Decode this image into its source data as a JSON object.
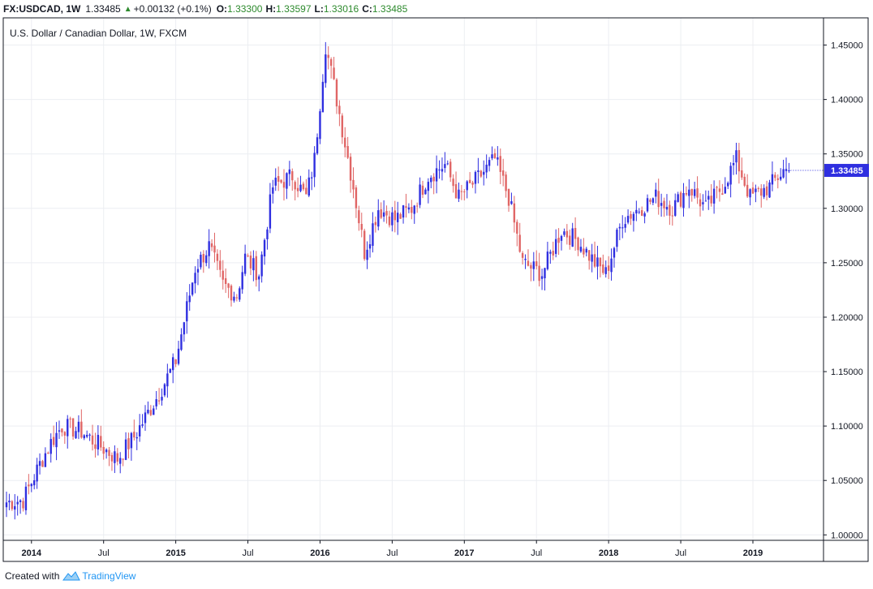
{
  "header": {
    "symbol": "FX:USDCAD, 1W",
    "last": "1.33485",
    "change": "+0.00132 (+0.1%)",
    "o_label": "O:",
    "o_value": "1.33300",
    "h_label": "H:",
    "h_value": "1.33597",
    "l_label": "L:",
    "l_value": "1.33016",
    "c_label": "C:",
    "c_value": "1.33485"
  },
  "footer": {
    "prefix": "Created with",
    "brand": "TradingView"
  },
  "colors": {
    "up": "#2f2fe0",
    "down": "#e06666",
    "grid": "#eceef2",
    "price_tag": "#2f2fe0",
    "header_green": "#2d8a2d"
  },
  "chart_data": {
    "type": "candlestick",
    "title": "U.S. Dollar / Canadian Dollar, 1W, FXCM",
    "timeframe": "1W",
    "last_price_label": "1.33485",
    "ylim": [
      0.995,
      1.475
    ],
    "y_ticks": [
      "1.00000",
      "1.05000",
      "1.10000",
      "1.15000",
      "1.20000",
      "1.25000",
      "1.30000",
      "1.35000",
      "1.40000",
      "1.45000"
    ],
    "x_ticks": [
      {
        "label": "2014",
        "bold": true,
        "week": 9
      },
      {
        "label": "Jul",
        "bold": false,
        "week": 35
      },
      {
        "label": "2015",
        "bold": true,
        "week": 61
      },
      {
        "label": "Jul",
        "bold": false,
        "week": 87
      },
      {
        "label": "2016",
        "bold": true,
        "week": 113
      },
      {
        "label": "Jul",
        "bold": false,
        "week": 139
      },
      {
        "label": "2017",
        "bold": true,
        "week": 165
      },
      {
        "label": "Jul",
        "bold": false,
        "week": 191
      },
      {
        "label": "2018",
        "bold": true,
        "week": 217
      },
      {
        "label": "Jul",
        "bold": false,
        "week": 243
      },
      {
        "label": "2019",
        "bold": true,
        "week": 269
      }
    ],
    "weeks_total": 295,
    "anchors": [
      [
        0,
        1.03
      ],
      [
        6,
        1.032
      ],
      [
        12,
        1.065
      ],
      [
        16,
        1.085
      ],
      [
        20,
        1.1
      ],
      [
        27,
        1.095
      ],
      [
        32,
        1.085
      ],
      [
        40,
        1.07
      ],
      [
        46,
        1.09
      ],
      [
        55,
        1.13
      ],
      [
        61,
        1.16
      ],
      [
        68,
        1.245
      ],
      [
        73,
        1.265
      ],
      [
        78,
        1.23
      ],
      [
        83,
        1.22
      ],
      [
        86,
        1.255
      ],
      [
        91,
        1.24
      ],
      [
        96,
        1.32
      ],
      [
        103,
        1.33
      ],
      [
        108,
        1.31
      ],
      [
        111,
        1.345
      ],
      [
        115,
        1.45
      ],
      [
        119,
        1.4
      ],
      [
        125,
        1.32
      ],
      [
        129,
        1.26
      ],
      [
        134,
        1.3
      ],
      [
        140,
        1.29
      ],
      [
        146,
        1.3
      ],
      [
        152,
        1.33
      ],
      [
        158,
        1.34
      ],
      [
        163,
        1.31
      ],
      [
        169,
        1.325
      ],
      [
        176,
        1.345
      ],
      [
        181,
        1.31
      ],
      [
        186,
        1.25
      ],
      [
        193,
        1.24
      ],
      [
        200,
        1.28
      ],
      [
        206,
        1.27
      ],
      [
        212,
        1.25
      ],
      [
        216,
        1.24
      ],
      [
        222,
        1.29
      ],
      [
        228,
        1.3
      ],
      [
        234,
        1.31
      ],
      [
        240,
        1.3
      ],
      [
        246,
        1.32
      ],
      [
        252,
        1.3
      ],
      [
        258,
        1.32
      ],
      [
        263,
        1.345
      ],
      [
        268,
        1.31
      ],
      [
        275,
        1.32
      ],
      [
        280,
        1.335
      ],
      [
        282,
        1.33485
      ]
    ]
  }
}
